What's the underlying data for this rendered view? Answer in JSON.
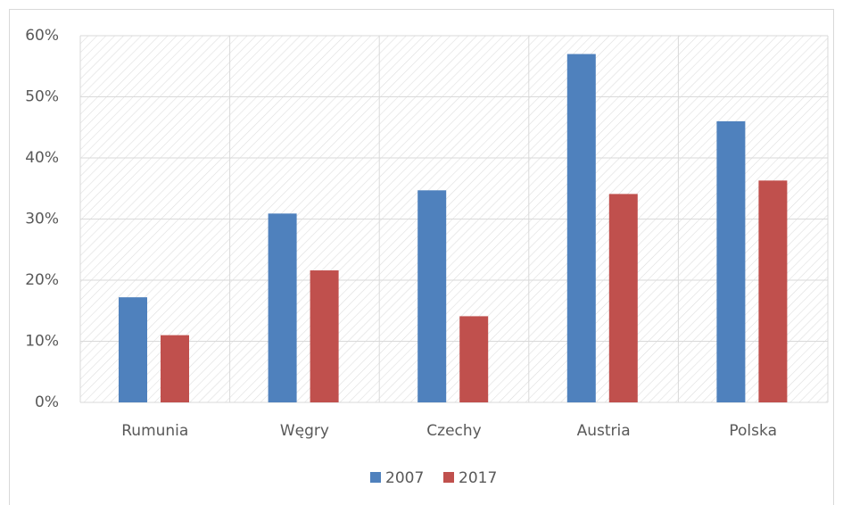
{
  "chart_data": {
    "type": "bar",
    "categories": [
      "Rumunia",
      "Węgry",
      "Czechy",
      "Austria",
      "Polska"
    ],
    "series": [
      {
        "name": "2007",
        "color": "#4f81bd",
        "values": [
          17.2,
          30.9,
          34.7,
          57,
          46
        ]
      },
      {
        "name": "2017",
        "color": "#c0504d",
        "values": [
          11,
          21.6,
          14.1,
          34.1,
          36.3
        ]
      }
    ],
    "ylim": [
      0,
      60
    ],
    "yticks": [
      {
        "value": 0,
        "label": "0%"
      },
      {
        "value": 10,
        "label": "10%"
      },
      {
        "value": 20,
        "label": "20%"
      },
      {
        "value": 30,
        "label": "30%"
      },
      {
        "value": 40,
        "label": "40%"
      },
      {
        "value": 50,
        "label": "50%"
      },
      {
        "value": 60,
        "label": "60%"
      }
    ],
    "grid": true,
    "legend": "bottom"
  }
}
